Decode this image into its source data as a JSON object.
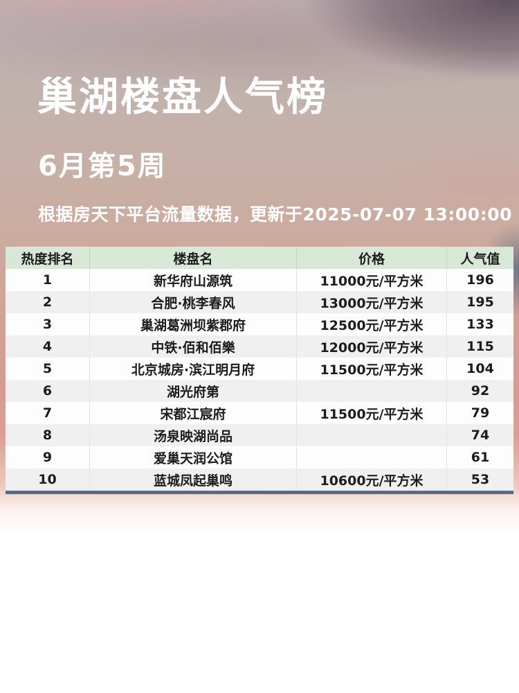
{
  "header": {
    "title": "巢湖楼盘人气榜",
    "period": "6月第5周",
    "update_note": "根据房天下平台流量数据，更新于2025-07-07 13:00:00"
  },
  "chart_data": {
    "type": "table",
    "title": "巢湖楼盘人气榜",
    "period": "6月第5周",
    "source_note": "根据房天下平台流量数据，更新于2025-07-07 13:00:00",
    "columns": [
      "热度排名",
      "楼盘名",
      "价格",
      "人气值"
    ],
    "rows": [
      {
        "rank": "1",
        "name": "新华府山源筑",
        "price": "11000元/平方米",
        "popularity": "196"
      },
      {
        "rank": "2",
        "name": "合肥·桃李春风",
        "price": "13000元/平方米",
        "popularity": "195"
      },
      {
        "rank": "3",
        "name": "巢湖葛洲坝紫郡府",
        "price": "12500元/平方米",
        "popularity": "133"
      },
      {
        "rank": "4",
        "name": "中铁·佰和佰樂",
        "price": "12000元/平方米",
        "popularity": "115"
      },
      {
        "rank": "5",
        "name": "北京城房·滨江明月府",
        "price": "11500元/平方米",
        "popularity": "104"
      },
      {
        "rank": "6",
        "name": "湖光府第",
        "price": "",
        "popularity": "92"
      },
      {
        "rank": "7",
        "name": "宋都江宸府",
        "price": "11500元/平方米",
        "popularity": "79"
      },
      {
        "rank": "8",
        "name": "汤泉映湖尚品",
        "price": "",
        "popularity": "74"
      },
      {
        "rank": "9",
        "name": "爱巢天润公馆",
        "price": "",
        "popularity": "61"
      },
      {
        "rank": "10",
        "name": "蓝城凤起巢鸣",
        "price": "10600元/平方米",
        "popularity": "53"
      }
    ]
  },
  "colors": {
    "title_text": "#ffffff",
    "table_header_bg": "#d7e8d6",
    "row_bg": "#fdfdfd",
    "row_alt_bg": "#f0f0f0",
    "table_bottom_border": "#5b6a88",
    "cell_text": "#1c1c1c"
  }
}
